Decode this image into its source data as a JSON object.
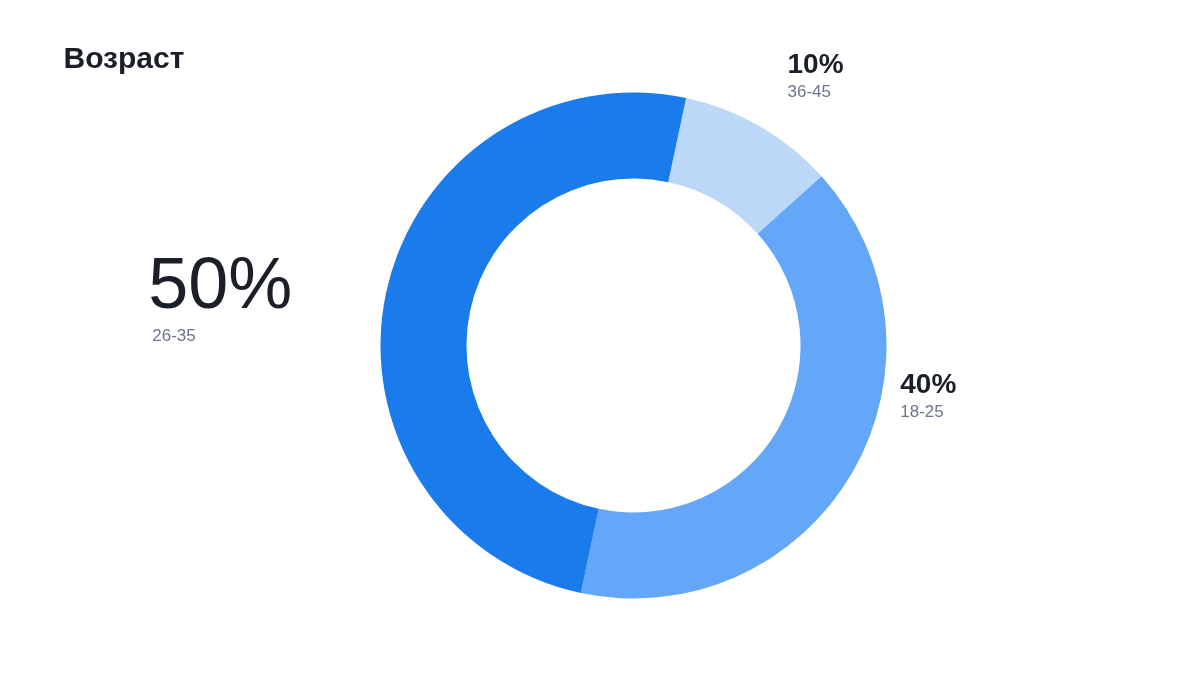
{
  "chart_data": {
    "type": "donut",
    "title": "Возраст",
    "categories": [
      "36-45",
      "18-25",
      "26-35"
    ],
    "values": [
      10,
      40,
      50
    ],
    "colors": [
      "#bcd8f8",
      "#64a6f8",
      "#1a7beb"
    ],
    "value_labels": [
      "10%",
      "40%",
      "50%"
    ]
  }
}
